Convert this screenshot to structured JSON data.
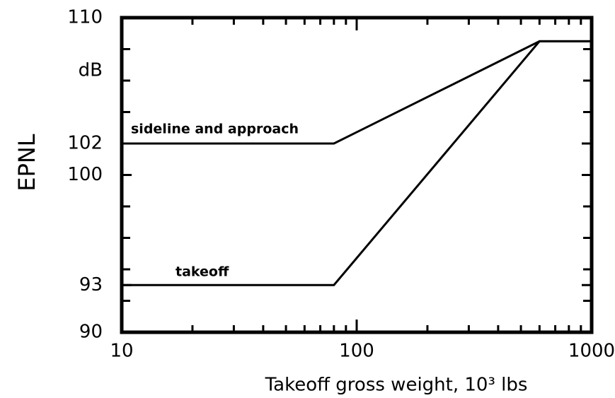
{
  "chart_data": {
    "type": "line",
    "ylabel": "EPNL",
    "yunit": "dB",
    "xlabel": "Takeoff gross weight, 10³ lbs",
    "xscale": "log",
    "xlim": [
      10,
      1000
    ],
    "xticks": [
      10,
      100,
      1000
    ],
    "xminorticks": [
      20,
      30,
      40,
      50,
      60,
      70,
      80,
      90,
      200,
      300,
      400,
      500,
      600,
      700,
      800,
      900
    ],
    "ylim": [
      90,
      110
    ],
    "yticks": [
      90,
      93,
      100,
      102,
      110
    ],
    "yminorticks": [
      92,
      94,
      96,
      98,
      104,
      106,
      108
    ],
    "series": [
      {
        "name": "sideline and approach",
        "color": "#000000",
        "x": [
          10,
          80,
          600,
          1000
        ],
        "values": [
          102,
          102,
          108.5,
          108.5
        ]
      },
      {
        "name": "takeoff",
        "color": "#000000",
        "x": [
          10,
          80,
          600,
          1000
        ],
        "values": [
          93,
          93,
          108.5,
          108.5
        ]
      }
    ]
  }
}
